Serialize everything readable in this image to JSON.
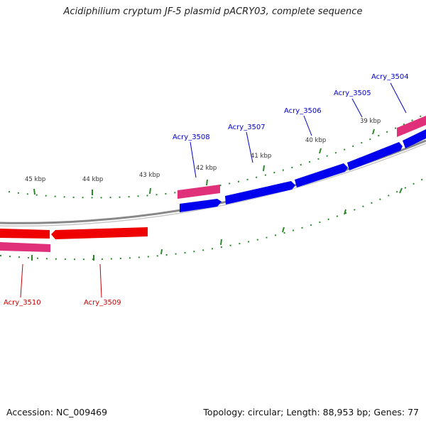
{
  "title": "Acidiphilium cryptum JF-5 plasmid pACRY03, complete sequence",
  "footer": {
    "accession": "Accession: NC_009469",
    "summary": "Topology: circular; Length: 88,953 bp; Genes: 77"
  },
  "colors": {
    "forward_cds": "#0000ee",
    "reverse_cds": "#ee0000",
    "gene_feature": "#e0307a",
    "tick": "#2a8a2a",
    "backbone": "#888888",
    "forward_label": "#0000cc",
    "reverse_label": "#cc0000",
    "scale_label": "#333333"
  },
  "kbp_labels": [
    "39 kbp",
    "40 kbp",
    "41 kbp",
    "42 kbp",
    "43 kbp",
    "44 kbp",
    "45 kbp"
  ],
  "forward_genes": [
    "Acry_3504",
    "Acry_3505",
    "Acry_3506",
    "Acry_3507",
    "Acry_3508"
  ],
  "reverse_genes": [
    "Acry_3509",
    "Acry_3510"
  ]
}
